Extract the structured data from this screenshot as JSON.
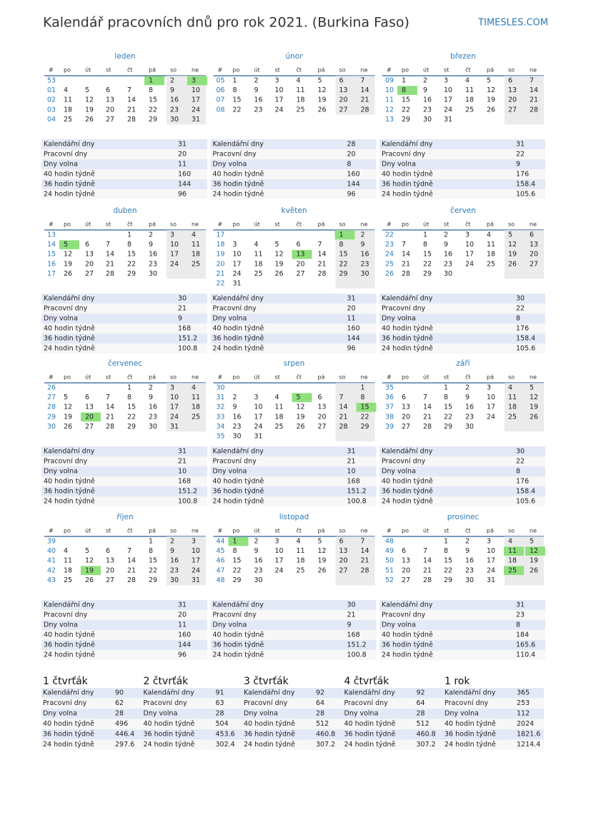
{
  "header": {
    "title": "Kalendář pracovních dnů pro rok 2021. (Burkina Faso)",
    "brand": "TIMESLES.COM"
  },
  "weekday_header": [
    "#",
    "po",
    "út",
    "st",
    "čt",
    "pá",
    "so",
    "ne"
  ],
  "stat_labels": [
    "Kalendářní dny",
    "Pracovní dny",
    "Dny volna",
    "40 hodin týdně",
    "36 hodin týdně",
    "24 hodin týdně"
  ],
  "months": [
    {
      "name": "leden",
      "holidays": [
        1,
        3
      ],
      "weeks": [
        {
          "week": "53",
          "days": [
            null,
            null,
            null,
            null,
            1,
            2,
            3
          ]
        },
        {
          "week": "01",
          "days": [
            4,
            5,
            6,
            7,
            8,
            9,
            10
          ]
        },
        {
          "week": "02",
          "days": [
            11,
            12,
            13,
            14,
            15,
            16,
            17
          ]
        },
        {
          "week": "03",
          "days": [
            18,
            19,
            20,
            21,
            22,
            23,
            24
          ]
        },
        {
          "week": "04",
          "days": [
            25,
            26,
            27,
            28,
            29,
            30,
            31
          ]
        }
      ],
      "stats": [
        31,
        20,
        11,
        160,
        144,
        96
      ]
    },
    {
      "name": "únor",
      "holidays": [],
      "weeks": [
        {
          "week": "05",
          "days": [
            1,
            2,
            3,
            4,
            5,
            6,
            7
          ]
        },
        {
          "week": "06",
          "days": [
            8,
            9,
            10,
            11,
            12,
            13,
            14
          ]
        },
        {
          "week": "07",
          "days": [
            15,
            16,
            17,
            18,
            19,
            20,
            21
          ]
        },
        {
          "week": "08",
          "days": [
            22,
            23,
            24,
            25,
            26,
            27,
            28
          ]
        }
      ],
      "stats": [
        28,
        20,
        8,
        160,
        144,
        96
      ]
    },
    {
      "name": "březen",
      "holidays": [
        8
      ],
      "weeks": [
        {
          "week": "09",
          "days": [
            1,
            2,
            3,
            4,
            5,
            6,
            7
          ]
        },
        {
          "week": "10",
          "days": [
            8,
            9,
            10,
            11,
            12,
            13,
            14
          ]
        },
        {
          "week": "11",
          "days": [
            15,
            16,
            17,
            18,
            19,
            20,
            21
          ]
        },
        {
          "week": "12",
          "days": [
            22,
            23,
            24,
            25,
            26,
            27,
            28
          ]
        },
        {
          "week": "13",
          "days": [
            29,
            30,
            31,
            null,
            null,
            null,
            null
          ]
        }
      ],
      "stats": [
        31,
        22,
        9,
        176,
        158.4,
        105.6
      ]
    },
    {
      "name": "duben",
      "holidays": [
        5
      ],
      "weeks": [
        {
          "week": "13",
          "days": [
            null,
            null,
            null,
            1,
            2,
            3,
            4
          ]
        },
        {
          "week": "14",
          "days": [
            5,
            6,
            7,
            8,
            9,
            10,
            11
          ]
        },
        {
          "week": "15",
          "days": [
            12,
            13,
            14,
            15,
            16,
            17,
            18
          ]
        },
        {
          "week": "16",
          "days": [
            19,
            20,
            21,
            22,
            23,
            24,
            25
          ]
        },
        {
          "week": "17",
          "days": [
            26,
            27,
            28,
            29,
            30,
            null,
            null
          ]
        }
      ],
      "stats": [
        30,
        21,
        9,
        168,
        151.2,
        100.8
      ]
    },
    {
      "name": "květen",
      "holidays": [
        1,
        13
      ],
      "weeks": [
        {
          "week": "17",
          "days": [
            null,
            null,
            null,
            null,
            null,
            1,
            2
          ]
        },
        {
          "week": "18",
          "days": [
            3,
            4,
            5,
            6,
            7,
            8,
            9
          ]
        },
        {
          "week": "19",
          "days": [
            10,
            11,
            12,
            13,
            14,
            15,
            16
          ]
        },
        {
          "week": "20",
          "days": [
            17,
            18,
            19,
            20,
            21,
            22,
            23
          ]
        },
        {
          "week": "21",
          "days": [
            24,
            25,
            26,
            27,
            28,
            29,
            30
          ]
        },
        {
          "week": "22",
          "days": [
            31,
            null,
            null,
            null,
            null,
            null,
            null
          ]
        }
      ],
      "stats": [
        31,
        20,
        11,
        160,
        144,
        96
      ]
    },
    {
      "name": "červen",
      "holidays": [],
      "weeks": [
        {
          "week": "22",
          "days": [
            null,
            1,
            2,
            3,
            4,
            5,
            6
          ]
        },
        {
          "week": "23",
          "days": [
            7,
            8,
            9,
            10,
            11,
            12,
            13
          ]
        },
        {
          "week": "24",
          "days": [
            14,
            15,
            16,
            17,
            18,
            19,
            20
          ]
        },
        {
          "week": "25",
          "days": [
            21,
            22,
            23,
            24,
            25,
            26,
            27
          ]
        },
        {
          "week": "26",
          "days": [
            28,
            29,
            30,
            null,
            null,
            null,
            null
          ]
        }
      ],
      "stats": [
        30,
        22,
        8,
        176,
        158.4,
        105.6
      ]
    },
    {
      "name": "červenec",
      "holidays": [
        20
      ],
      "weeks": [
        {
          "week": "26",
          "days": [
            null,
            null,
            null,
            1,
            2,
            3,
            4
          ]
        },
        {
          "week": "27",
          "days": [
            5,
            6,
            7,
            8,
            9,
            10,
            11
          ]
        },
        {
          "week": "28",
          "days": [
            12,
            13,
            14,
            15,
            16,
            17,
            18
          ]
        },
        {
          "week": "29",
          "days": [
            19,
            20,
            21,
            22,
            23,
            24,
            25
          ]
        },
        {
          "week": "30",
          "days": [
            26,
            27,
            28,
            29,
            30,
            31,
            null
          ]
        }
      ],
      "stats": [
        31,
        21,
        10,
        168,
        151.2,
        100.8
      ]
    },
    {
      "name": "srpen",
      "holidays": [
        5,
        15
      ],
      "weeks": [
        {
          "week": "30",
          "days": [
            null,
            null,
            null,
            null,
            null,
            null,
            1
          ]
        },
        {
          "week": "31",
          "days": [
            2,
            3,
            4,
            5,
            6,
            7,
            8
          ]
        },
        {
          "week": "32",
          "days": [
            9,
            10,
            11,
            12,
            13,
            14,
            15
          ]
        },
        {
          "week": "33",
          "days": [
            16,
            17,
            18,
            19,
            20,
            21,
            22
          ]
        },
        {
          "week": "34",
          "days": [
            23,
            24,
            25,
            26,
            27,
            28,
            29
          ]
        },
        {
          "week": "35",
          "days": [
            30,
            31,
            null,
            null,
            null,
            null,
            null
          ]
        }
      ],
      "stats": [
        31,
        21,
        10,
        168,
        151.2,
        100.8
      ]
    },
    {
      "name": "září",
      "holidays": [],
      "weeks": [
        {
          "week": "35",
          "days": [
            null,
            null,
            1,
            2,
            3,
            4,
            5
          ]
        },
        {
          "week": "36",
          "days": [
            6,
            7,
            8,
            9,
            10,
            11,
            12
          ]
        },
        {
          "week": "37",
          "days": [
            13,
            14,
            15,
            16,
            17,
            18,
            19
          ]
        },
        {
          "week": "38",
          "days": [
            20,
            21,
            22,
            23,
            24,
            25,
            26
          ]
        },
        {
          "week": "39",
          "days": [
            27,
            28,
            29,
            30,
            null,
            null,
            null
          ]
        }
      ],
      "stats": [
        30,
        22,
        8,
        176,
        158.4,
        105.6
      ]
    },
    {
      "name": "říjen",
      "holidays": [
        19
      ],
      "weeks": [
        {
          "week": "39",
          "days": [
            null,
            null,
            null,
            null,
            1,
            2,
            3
          ]
        },
        {
          "week": "40",
          "days": [
            4,
            5,
            6,
            7,
            8,
            9,
            10
          ]
        },
        {
          "week": "41",
          "days": [
            11,
            12,
            13,
            14,
            15,
            16,
            17
          ]
        },
        {
          "week": "42",
          "days": [
            18,
            19,
            20,
            21,
            22,
            23,
            24
          ]
        },
        {
          "week": "43",
          "days": [
            25,
            26,
            27,
            28,
            29,
            30,
            31
          ]
        }
      ],
      "stats": [
        31,
        20,
        11,
        160,
        144,
        96
      ]
    },
    {
      "name": "listopad",
      "holidays": [
        1
      ],
      "weeks": [
        {
          "week": "44",
          "days": [
            1,
            2,
            3,
            4,
            5,
            6,
            7
          ]
        },
        {
          "week": "45",
          "days": [
            8,
            9,
            10,
            11,
            12,
            13,
            14
          ]
        },
        {
          "week": "46",
          "days": [
            15,
            16,
            17,
            18,
            19,
            20,
            21
          ]
        },
        {
          "week": "47",
          "days": [
            22,
            23,
            24,
            25,
            26,
            27,
            28
          ]
        },
        {
          "week": "48",
          "days": [
            29,
            30,
            null,
            null,
            null,
            null,
            null
          ]
        }
      ],
      "stats": [
        30,
        21,
        9,
        168,
        151.2,
        100.8
      ]
    },
    {
      "name": "prosinec",
      "holidays": [
        11,
        12,
        25
      ],
      "weeks": [
        {
          "week": "48",
          "days": [
            null,
            null,
            1,
            2,
            3,
            4,
            5
          ]
        },
        {
          "week": "49",
          "days": [
            6,
            7,
            8,
            9,
            10,
            11,
            12
          ]
        },
        {
          "week": "50",
          "days": [
            13,
            14,
            15,
            16,
            17,
            18,
            19
          ]
        },
        {
          "week": "51",
          "days": [
            20,
            21,
            22,
            23,
            24,
            25,
            26
          ]
        },
        {
          "week": "52",
          "days": [
            27,
            28,
            29,
            30,
            31,
            null,
            null
          ]
        }
      ],
      "stats": [
        31,
        23,
        8,
        184,
        165.6,
        110.4
      ]
    }
  ],
  "summary": [
    {
      "title": "1 čtvrťák",
      "stats": [
        90,
        62,
        28,
        496,
        446.4,
        297.6
      ]
    },
    {
      "title": "2 čtvrťák",
      "stats": [
        91,
        63,
        28,
        504,
        453.6,
        302.4
      ]
    },
    {
      "title": "3 čtvrťák",
      "stats": [
        92,
        64,
        28,
        512,
        460.8,
        307.2
      ]
    },
    {
      "title": "4 čtvrťák",
      "stats": [
        92,
        64,
        28,
        512,
        460.8,
        307.2
      ]
    },
    {
      "title": "1 rok",
      "stats": [
        365,
        253,
        112,
        2024,
        1821.6,
        1214.4
      ]
    }
  ]
}
